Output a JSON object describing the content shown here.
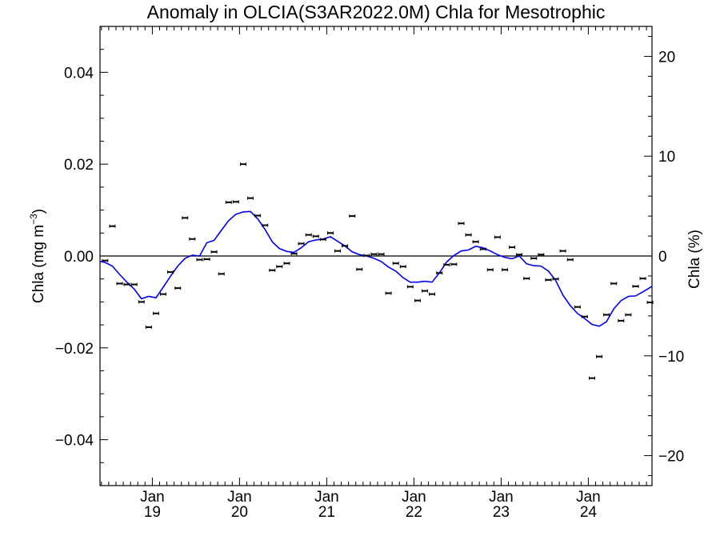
{
  "chart_data": {
    "type": "line",
    "title": "Anomaly in OLCIA(S3AR2022.0M) Chla for Mesotrophic",
    "ylabel_left": "Chla (mg m",
    "ylabel_left_sup": "−3",
    "ylabel_left_close": ")",
    "ylabel_right": "Chla (%)",
    "ylim_left": [
      -0.05,
      0.05
    ],
    "ylim_right": [
      -23,
      23
    ],
    "xlim": [
      2018.4,
      2024.73
    ],
    "yticks_left": [
      {
        "value": 0.04,
        "label": "0.04"
      },
      {
        "value": 0.02,
        "label": "0.02"
      },
      {
        "value": 0.0,
        "label": "0.00"
      },
      {
        "value": -0.02,
        "label": "−0.02"
      },
      {
        "value": -0.04,
        "label": "−0.04"
      }
    ],
    "yticks_right": [
      {
        "value": 20,
        "label": "20"
      },
      {
        "value": 10,
        "label": "10"
      },
      {
        "value": 0,
        "label": "0"
      },
      {
        "value": -10,
        "label": "−10"
      },
      {
        "value": -20,
        "label": "−20"
      }
    ],
    "xticks": [
      {
        "value": 2019.0,
        "month": "Jan",
        "year": "19"
      },
      {
        "value": 2020.0,
        "month": "Jan",
        "year": "20"
      },
      {
        "value": 2021.0,
        "month": "Jan",
        "year": "21"
      },
      {
        "value": 2022.0,
        "month": "Jan",
        "year": "22"
      },
      {
        "value": 2023.0,
        "month": "Jan",
        "year": "23"
      },
      {
        "value": 2024.0,
        "month": "Jan",
        "year": "24"
      }
    ],
    "zero_line": 0,
    "series": [
      {
        "kind": "monthly-points-with-errorbars",
        "color": "#000000",
        "x": [
          2018.458,
          2018.542,
          2018.625,
          2018.708,
          2018.792,
          2018.875,
          2018.958,
          2019.042,
          2019.125,
          2019.208,
          2019.292,
          2019.375,
          2019.458,
          2019.542,
          2019.625,
          2019.708,
          2019.792,
          2019.875,
          2019.958,
          2020.042,
          2020.125,
          2020.208,
          2020.292,
          2020.375,
          2020.458,
          2020.542,
          2020.625,
          2020.708,
          2020.792,
          2020.875,
          2020.958,
          2021.042,
          2021.125,
          2021.208,
          2021.292,
          2021.375,
          2021.458,
          2021.542,
          2021.625,
          2021.708,
          2021.792,
          2021.875,
          2021.958,
          2022.042,
          2022.125,
          2022.208,
          2022.292,
          2022.375,
          2022.458,
          2022.542,
          2022.625,
          2022.708,
          2022.792,
          2022.875,
          2022.958,
          2023.042,
          2023.125,
          2023.208,
          2023.292,
          2023.375,
          2023.458,
          2023.542,
          2023.625,
          2023.708,
          2023.792,
          2023.875,
          2023.958,
          2024.042,
          2024.125,
          2024.208,
          2024.292,
          2024.375,
          2024.458,
          2024.542,
          2024.625,
          2024.708
        ],
        "y": [
          -0.001,
          0.0065,
          -0.006,
          -0.0062,
          -0.0062,
          -0.01,
          -0.0155,
          -0.0125,
          -0.0083,
          -0.0035,
          -0.007,
          0.0083,
          0.0037,
          -0.0008,
          -0.0007,
          0.0009,
          -0.0039,
          0.0117,
          0.0118,
          0.02,
          0.0126,
          0.0088,
          0.0067,
          -0.0031,
          -0.0023,
          -0.0016,
          0.0005,
          0.0027,
          0.0046,
          0.0043,
          0.0036,
          0.005,
          0.0011,
          0.0022,
          0.0087,
          -0.0029,
          0.0001,
          0.0004,
          0.0004,
          -0.0081,
          -0.0016,
          -0.0023,
          -0.0067,
          -0.0097,
          -0.0076,
          -0.0083,
          -0.0037,
          -0.0019,
          -0.0018,
          0.0071,
          0.0046,
          0.0031,
          0.0015,
          -0.003,
          0.0041,
          -0.003,
          0.0019,
          0.0003,
          -0.0049,
          -0.0005,
          0.0003,
          -0.0052,
          -0.005,
          0.0011,
          -0.0008,
          -0.0111,
          -0.0132,
          -0.0266,
          -0.0219,
          -0.0128,
          -0.006,
          -0.0141,
          -0.0128,
          -0.0066,
          -0.0049,
          -0.0101
        ]
      },
      {
        "kind": "smoothed-line",
        "color": "#0000ee",
        "x": [
          2018.4,
          2018.458,
          2018.542,
          2018.625,
          2018.708,
          2018.792,
          2018.875,
          2018.958,
          2019.042,
          2019.125,
          2019.208,
          2019.292,
          2019.375,
          2019.458,
          2019.542,
          2019.625,
          2019.708,
          2019.792,
          2019.875,
          2019.958,
          2020.042,
          2020.125,
          2020.208,
          2020.292,
          2020.375,
          2020.458,
          2020.542,
          2020.625,
          2020.708,
          2020.792,
          2020.875,
          2020.958,
          2021.042,
          2021.125,
          2021.208,
          2021.292,
          2021.375,
          2021.458,
          2021.542,
          2021.625,
          2021.708,
          2021.792,
          2021.875,
          2021.958,
          2022.042,
          2022.125,
          2022.208,
          2022.292,
          2022.375,
          2022.458,
          2022.542,
          2022.625,
          2022.708,
          2022.792,
          2022.875,
          2022.958,
          2023.042,
          2023.125,
          2023.208,
          2023.292,
          2023.375,
          2023.458,
          2023.542,
          2023.625,
          2023.708,
          2023.792,
          2023.875,
          2023.958,
          2024.042,
          2024.125,
          2024.208,
          2024.292,
          2024.375,
          2024.458,
          2024.542,
          2024.625,
          2024.73
        ],
        "y": [
          -0.0012,
          -0.0014,
          -0.0022,
          -0.004,
          -0.0057,
          -0.0072,
          -0.0093,
          -0.0088,
          -0.0091,
          -0.0068,
          -0.0044,
          -0.0022,
          -0.0005,
          0.0002,
          0.0,
          0.0029,
          0.0034,
          0.0056,
          0.0077,
          0.0091,
          0.0096,
          0.0097,
          0.0081,
          0.0058,
          0.0031,
          0.0016,
          0.001,
          0.0008,
          0.0018,
          0.0031,
          0.0035,
          0.0037,
          0.0042,
          0.0032,
          0.0022,
          0.0009,
          0.0003,
          0.0,
          -0.0005,
          -0.0012,
          -0.0024,
          -0.0033,
          -0.0047,
          -0.0057,
          -0.0057,
          -0.0055,
          -0.0057,
          -0.0037,
          -0.0013,
          0.0001,
          0.0011,
          0.0013,
          0.0021,
          0.0018,
          0.0011,
          0.0003,
          -0.0003,
          -0.0006,
          0.0,
          -0.0017,
          -0.0021,
          -0.0022,
          -0.0033,
          -0.0053,
          -0.0085,
          -0.0108,
          -0.0125,
          -0.0136,
          -0.0149,
          -0.0153,
          -0.0143,
          -0.0115,
          -0.0097,
          -0.0088,
          -0.0087,
          -0.0078,
          -0.0066
        ]
      }
    ]
  }
}
